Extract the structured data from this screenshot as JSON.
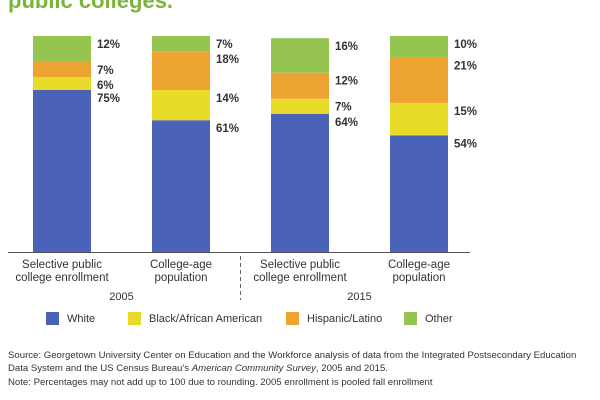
{
  "title": "public colleges.",
  "colors": {
    "title": "#79b538",
    "White": "#4a63b8",
    "Black/African American": "#e8dc28",
    "Hispanic/Latino": "#eda32f",
    "Other": "#96c451"
  },
  "chart_data": {
    "type": "bar",
    "stacked": true,
    "categories": [
      "Selective public college enrollment (2005)",
      "College-age population (2005)",
      "Selective public college enrollment (2015)",
      "College-age population (2015)"
    ],
    "bar_labels": [
      [
        "Selective public",
        "college enrollment"
      ],
      [
        "College-age",
        "population"
      ],
      [
        "Selective public",
        "college enrollment"
      ],
      [
        "College-age",
        "population"
      ]
    ],
    "groups": [
      {
        "label": "2005",
        "bars": [
          0,
          1
        ]
      },
      {
        "label": "2015",
        "bars": [
          2,
          3
        ]
      }
    ],
    "series": [
      {
        "name": "White",
        "values": [
          75,
          61,
          64,
          54
        ],
        "labels": [
          "75%",
          "61%",
          "64%",
          "54%"
        ]
      },
      {
        "name": "Black/African American",
        "values": [
          6,
          14,
          7,
          15
        ],
        "labels": [
          "6%",
          "14%",
          "7%",
          "15%"
        ]
      },
      {
        "name": "Hispanic/Latino",
        "values": [
          7,
          18,
          12,
          21
        ],
        "labels": [
          "7%",
          "18%",
          "12%",
          "21%"
        ]
      },
      {
        "name": "Other",
        "values": [
          12,
          7,
          16,
          10
        ],
        "labels": [
          "12%",
          "7%",
          "16%",
          "10%"
        ]
      }
    ],
    "ylim": [
      0,
      100
    ],
    "grid": false,
    "legend_position": "bottom"
  },
  "legend": [
    {
      "label": "White",
      "color": "#4a63b8"
    },
    {
      "label": "Black/African American",
      "color": "#e8dc28"
    },
    {
      "label": "Hispanic/Latino",
      "color": "#eda32f"
    },
    {
      "label": "Other",
      "color": "#96c451"
    }
  ],
  "footnotes": {
    "source_part1": "Source: Georgetown University Center on Education and the Workforce analysis of data from the Integrated Postsecondary Education Data System and the US Census Bureau's ",
    "source_italic": "American Community Survey",
    "source_part2": ", 2005 and 2015.",
    "note": "Note: Percentages may not add up to 100 due to rounding. 2005 enrollment is pooled fall enrollment"
  }
}
